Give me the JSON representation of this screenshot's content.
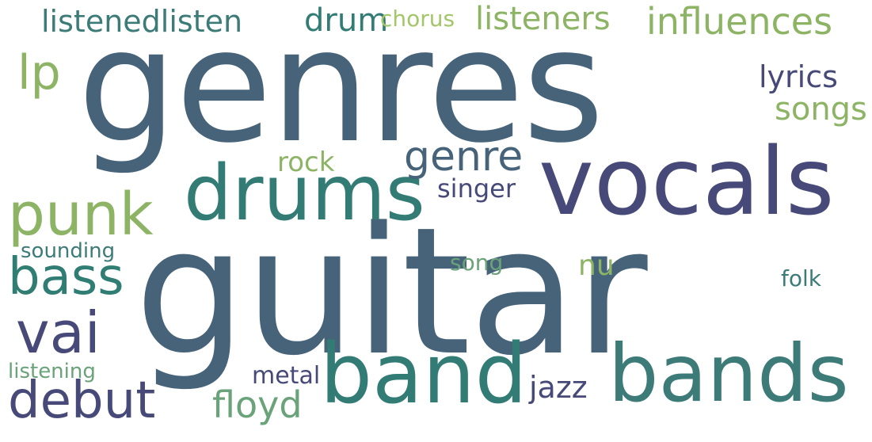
{
  "words": [
    {
      "text": "genres",
      "color": "#46637a"
    },
    {
      "text": "guitar",
      "color": "#46637a"
    },
    {
      "text": "vocals",
      "color": "#474a78"
    },
    {
      "text": "drums",
      "color": "#327c75"
    },
    {
      "text": "band",
      "color": "#327c75"
    },
    {
      "text": "bands",
      "color": "#3d7b78"
    },
    {
      "text": "punk",
      "color": "#8cb464"
    },
    {
      "text": "bass",
      "color": "#2f7d73"
    },
    {
      "text": "vai",
      "color": "#474a78"
    },
    {
      "text": "debut",
      "color": "#474a78"
    },
    {
      "text": "genre",
      "color": "#46637a"
    },
    {
      "text": "influences",
      "color": "#8cb464"
    },
    {
      "text": "listeners",
      "color": "#8cb464"
    },
    {
      "text": "listenedlisten",
      "color": "#3d7b78"
    },
    {
      "text": "drum",
      "color": "#327c75"
    },
    {
      "text": "chorus",
      "color": "#a3c66a"
    },
    {
      "text": "lp",
      "color": "#8cb464"
    },
    {
      "text": "lyrics",
      "color": "#474a78"
    },
    {
      "text": "songs",
      "color": "#8cb464"
    },
    {
      "text": "rock",
      "color": "#8cb464"
    },
    {
      "text": "singer",
      "color": "#474a78"
    },
    {
      "text": "sounding",
      "color": "#3d7b78"
    },
    {
      "text": "song",
      "color": "#6aa27a"
    },
    {
      "text": "nu",
      "color": "#8cb464"
    },
    {
      "text": "folk",
      "color": "#3d7b78"
    },
    {
      "text": "listening",
      "color": "#6aa27a"
    },
    {
      "text": "metal",
      "color": "#474a78"
    },
    {
      "text": "floyd",
      "color": "#6aa27a"
    },
    {
      "text": "jazz",
      "color": "#474a78"
    }
  ]
}
